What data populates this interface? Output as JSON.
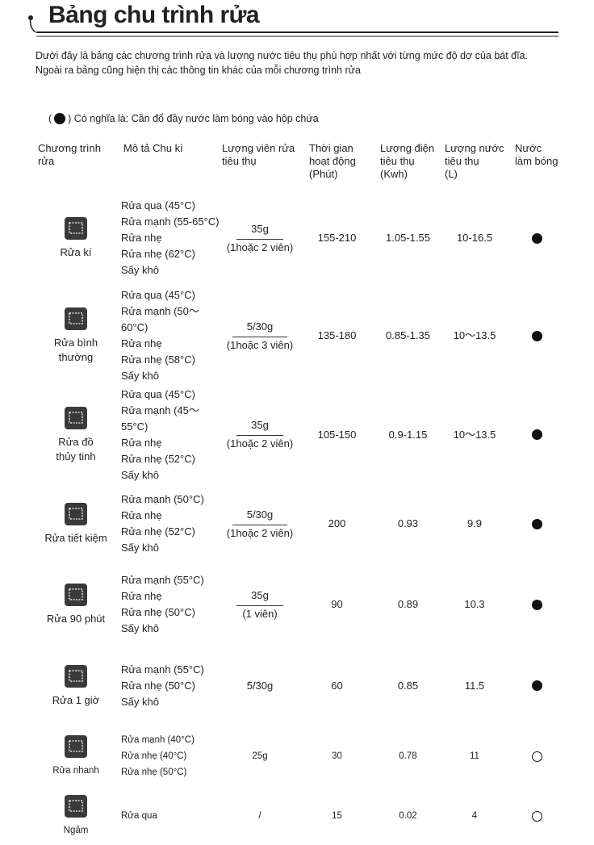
{
  "header": {
    "title": "Bảng chu trình rửa"
  },
  "intro": [
    "Dưới đây là bảng các chương trình rửa và lượng nước tiêu thụ phù hợp nhất với từng mức độ dơ của bát đĩa.",
    "Ngoài ra bảng cũng hiện thị các thông tin khác của mỗi chương trình rửa"
  ],
  "legend": {
    "open": "(",
    "text": ") Có nghĩa là: Cần đổ đầy nước làm bóng vào hộp chứa"
  },
  "table": {
    "columns": [
      [
        "Chương trình",
        "rửa"
      ],
      [
        "Mô tả Chu kì"
      ],
      [
        "Lượng viên rửa",
        "tiêu thụ"
      ],
      [
        "Thời gian",
        "hoạt động",
        "(Phút)"
      ],
      [
        "Lượng điện",
        "tiêu thụ",
        "(Kwh)"
      ],
      [
        "Lượng nước",
        "tiêu thụ",
        "(L)"
      ],
      [
        "Nước",
        "làm bóng"
      ]
    ],
    "rows": [
      {
        "name": [
          "Rửa kí"
        ],
        "steps": [
          "Rửa qua (45°C)",
          "Rửa mạnh (55-65°C)",
          "Rửa nhẹ",
          "Rửa nhẹ (62°C)",
          "Sấy khô"
        ],
        "detergent": "35g",
        "note": "(1hoặc 2 viên)",
        "time": "155-210",
        "energy": "1.05-1.55",
        "water": "10-16.5",
        "rinse_aid": true
      },
      {
        "name": [
          "Rửa bình",
          "thường"
        ],
        "steps": [
          "Rửa qua (45°C)",
          "Rửa mạnh (50～60°C)",
          "Rửa nhẹ",
          "Rửa nhẹ (58°C)",
          "Sấy khô"
        ],
        "detergent": "5/30g",
        "note": "(1hoặc 3 viên)",
        "time": "135-180",
        "energy": "0.85-1.35",
        "water": "10～13.5",
        "rinse_aid": true
      },
      {
        "name": [
          "Rửa đồ",
          "thủy tinh"
        ],
        "steps": [
          "Rửa qua (45°C)",
          "Rửa mạnh (45～55°C)",
          "Rửa nhẹ",
          "Rửa nhẹ (52°C)",
          "Sấy khô"
        ],
        "detergent": "35g",
        "note": "(1hoặc 2 viên)",
        "time": "105-150",
        "energy": "0.9-1.15",
        "water": "10～13.5",
        "rinse_aid": true
      },
      {
        "name": [
          "Rửa tiết kiệm"
        ],
        "steps": [
          "Rửa mạnh (50°C)",
          "Rửa nhẹ",
          "Rửa nhẹ (52°C)",
          "Sấy khô"
        ],
        "detergent": "5/30g",
        "note": "(1hoặc 2 viên)",
        "time": "200",
        "energy": "0.93",
        "water": "9.9",
        "rinse_aid": true
      },
      {
        "name": [
          "Rửa 90 phút"
        ],
        "steps": [
          "Rửa mạnh (55°C)",
          "Rửa nhẹ",
          "Rửa nhẹ (50°C)",
          "Sấy khô"
        ],
        "detergent": "35g",
        "note": "(1 viên)",
        "time": "90",
        "energy": "0.89",
        "water": "10.3",
        "rinse_aid": true
      },
      {
        "name": [
          "Rửa 1 giờ"
        ],
        "steps": [
          "Rửa mạnh (55°C)",
          "Rửa nhẹ (50°C)",
          "Sấy khô"
        ],
        "detergent": "5/30g",
        "time": "60",
        "energy": "0.85",
        "water": "11.5",
        "rinse_aid": true
      },
      {
        "name": [
          "Rửa nhanh"
        ],
        "steps": [
          "Rửa mạnh (40°C)",
          "Rửa nhẹ (40°C)",
          "Rửa nhẹ (50°C)"
        ],
        "detergent": "25g",
        "time": "30",
        "energy": "0.78",
        "water": "11",
        "rinse_aid": false
      },
      {
        "name": [
          "Ngâm"
        ],
        "steps": [
          "Rửa qua"
        ],
        "detergent": "/",
        "time": "15",
        "energy": "0.02",
        "water": "4",
        "rinse_aid": false
      }
    ]
  }
}
